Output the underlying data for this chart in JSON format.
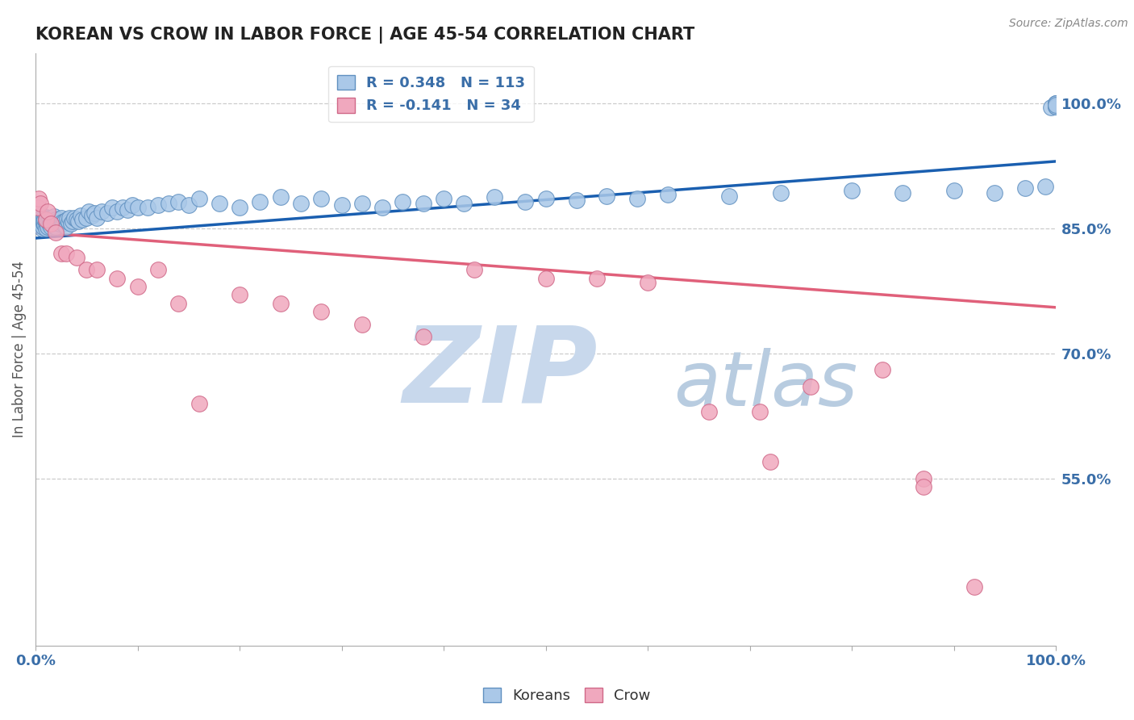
{
  "title": "KOREAN VS CROW IN LABOR FORCE | AGE 45-54 CORRELATION CHART",
  "source_text": "Source: ZipAtlas.com",
  "ylabel": "In Labor Force | Age 45-54",
  "xlim": [
    0.0,
    1.0
  ],
  "ylim": [
    0.35,
    1.06
  ],
  "y_tick_labels_right": [
    "55.0%",
    "70.0%",
    "85.0%",
    "100.0%"
  ],
  "y_tick_values_right": [
    0.55,
    0.7,
    0.85,
    1.0
  ],
  "korean_color": "#aac8e8",
  "crow_color": "#f0a8be",
  "korean_edge": "#6090c0",
  "crow_edge": "#d06888",
  "trend_korean_color": "#1a5fb0",
  "trend_crow_color": "#e0607a",
  "watermark_zip_color": "#c8d8ec",
  "watermark_atlas_color": "#b8cce0",
  "background_color": "#ffffff",
  "grid_color": "#cccccc",
  "title_color": "#222222",
  "axis_label_color": "#3a6ea8",
  "ylabel_color": "#555555",
  "korean_R": 0.348,
  "korean_N": 113,
  "crow_R": -0.141,
  "crow_N": 34,
  "trend_k_x0": 0.0,
  "trend_k_y0": 0.838,
  "trend_k_x1": 1.0,
  "trend_k_y1": 0.93,
  "trend_c_x0": 0.0,
  "trend_c_y0": 0.845,
  "trend_c_x1": 1.0,
  "trend_c_y1": 0.755,
  "korean_x": [
    0.002,
    0.003,
    0.004,
    0.004,
    0.005,
    0.005,
    0.006,
    0.006,
    0.006,
    0.007,
    0.007,
    0.008,
    0.008,
    0.008,
    0.009,
    0.009,
    0.01,
    0.01,
    0.01,
    0.01,
    0.011,
    0.011,
    0.012,
    0.012,
    0.013,
    0.013,
    0.014,
    0.015,
    0.015,
    0.016,
    0.016,
    0.017,
    0.017,
    0.018,
    0.018,
    0.019,
    0.02,
    0.02,
    0.021,
    0.022,
    0.023,
    0.024,
    0.025,
    0.026,
    0.027,
    0.028,
    0.03,
    0.031,
    0.032,
    0.033,
    0.035,
    0.036,
    0.038,
    0.04,
    0.042,
    0.044,
    0.046,
    0.05,
    0.052,
    0.055,
    0.058,
    0.06,
    0.065,
    0.07,
    0.075,
    0.08,
    0.085,
    0.09,
    0.095,
    0.1,
    0.11,
    0.12,
    0.13,
    0.14,
    0.15,
    0.16,
    0.18,
    0.2,
    0.22,
    0.24,
    0.26,
    0.28,
    0.3,
    0.32,
    0.34,
    0.36,
    0.38,
    0.4,
    0.42,
    0.45,
    0.48,
    0.5,
    0.53,
    0.56,
    0.59,
    0.62,
    0.68,
    0.73,
    0.8,
    0.85,
    0.9,
    0.94,
    0.97,
    0.99,
    0.995,
    1.0,
    1.0,
    1.0,
    1.0,
    1.0,
    1.0,
    1.0,
    1.0
  ],
  "korean_y": [
    0.855,
    0.86,
    0.858,
    0.862,
    0.855,
    0.865,
    0.85,
    0.858,
    0.863,
    0.852,
    0.86,
    0.855,
    0.862,
    0.858,
    0.854,
    0.86,
    0.85,
    0.857,
    0.863,
    0.858,
    0.855,
    0.86,
    0.852,
    0.858,
    0.855,
    0.862,
    0.857,
    0.852,
    0.86,
    0.855,
    0.862,
    0.857,
    0.853,
    0.858,
    0.864,
    0.856,
    0.852,
    0.86,
    0.856,
    0.858,
    0.86,
    0.855,
    0.862,
    0.857,
    0.855,
    0.858,
    0.852,
    0.86,
    0.857,
    0.862,
    0.855,
    0.858,
    0.862,
    0.86,
    0.858,
    0.865,
    0.86,
    0.862,
    0.87,
    0.865,
    0.868,
    0.862,
    0.87,
    0.868,
    0.875,
    0.87,
    0.875,
    0.872,
    0.878,
    0.875,
    0.875,
    0.878,
    0.88,
    0.882,
    0.878,
    0.885,
    0.88,
    0.875,
    0.882,
    0.887,
    0.88,
    0.885,
    0.878,
    0.88,
    0.875,
    0.882,
    0.88,
    0.885,
    0.88,
    0.887,
    0.882,
    0.885,
    0.883,
    0.888,
    0.885,
    0.89,
    0.888,
    0.892,
    0.895,
    0.892,
    0.895,
    0.892,
    0.898,
    0.9,
    0.995,
    1.0,
    0.998,
    1.0,
    0.996,
    0.998,
    1.0,
    0.996,
    0.998
  ],
  "crow_x": [
    0.002,
    0.003,
    0.005,
    0.01,
    0.012,
    0.015,
    0.02,
    0.025,
    0.03,
    0.04,
    0.05,
    0.06,
    0.08,
    0.1,
    0.12,
    0.14,
    0.16,
    0.2,
    0.24,
    0.28,
    0.32,
    0.38,
    0.43,
    0.5,
    0.55,
    0.6,
    0.66,
    0.71,
    0.72,
    0.76,
    0.83,
    0.87,
    0.87,
    0.92
  ],
  "crow_y": [
    0.875,
    0.885,
    0.88,
    0.86,
    0.87,
    0.855,
    0.845,
    0.82,
    0.82,
    0.815,
    0.8,
    0.8,
    0.79,
    0.78,
    0.8,
    0.76,
    0.64,
    0.77,
    0.76,
    0.75,
    0.735,
    0.72,
    0.8,
    0.79,
    0.79,
    0.785,
    0.63,
    0.63,
    0.57,
    0.66,
    0.68,
    0.55,
    0.54,
    0.42
  ]
}
